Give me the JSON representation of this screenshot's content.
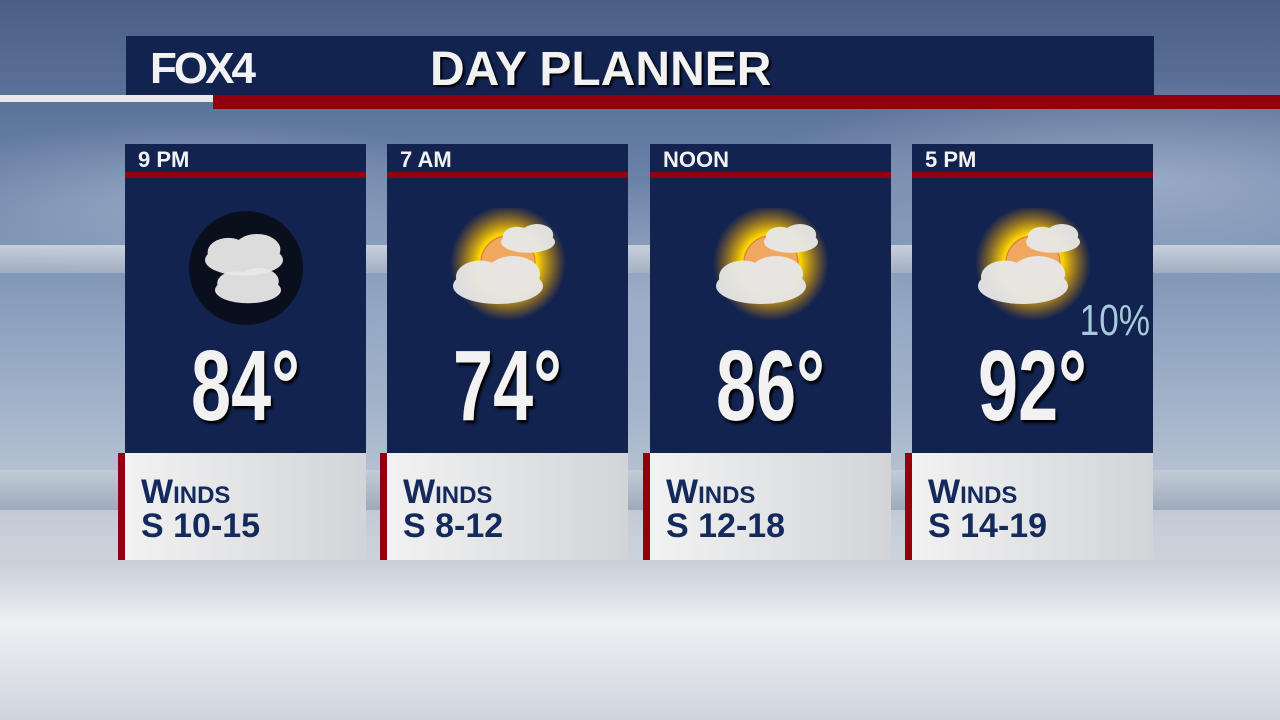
{
  "header": {
    "logo": "FOX4",
    "title": "DAY PLANNER"
  },
  "colors": {
    "navy": "#12234f",
    "red": "#920010",
    "pop": "#a8c8dc"
  },
  "periods": [
    {
      "time": "9 PM",
      "icon": "night-partly-cloudy-icon",
      "temp": "84°",
      "winds_label": "Winds",
      "winds": "S 10-15",
      "precip": ""
    },
    {
      "time": "7 AM",
      "icon": "partly-sunny-icon",
      "temp": "74°",
      "winds_label": "Winds",
      "winds": "S 8-12",
      "precip": ""
    },
    {
      "time": "NOON",
      "icon": "partly-sunny-icon",
      "temp": "86°",
      "winds_label": "Winds",
      "winds": "S 12-18",
      "precip": ""
    },
    {
      "time": "5 PM",
      "icon": "partly-sunny-icon",
      "temp": "92°",
      "winds_label": "Winds",
      "winds": "S 14-19",
      "precip": "10%"
    }
  ]
}
